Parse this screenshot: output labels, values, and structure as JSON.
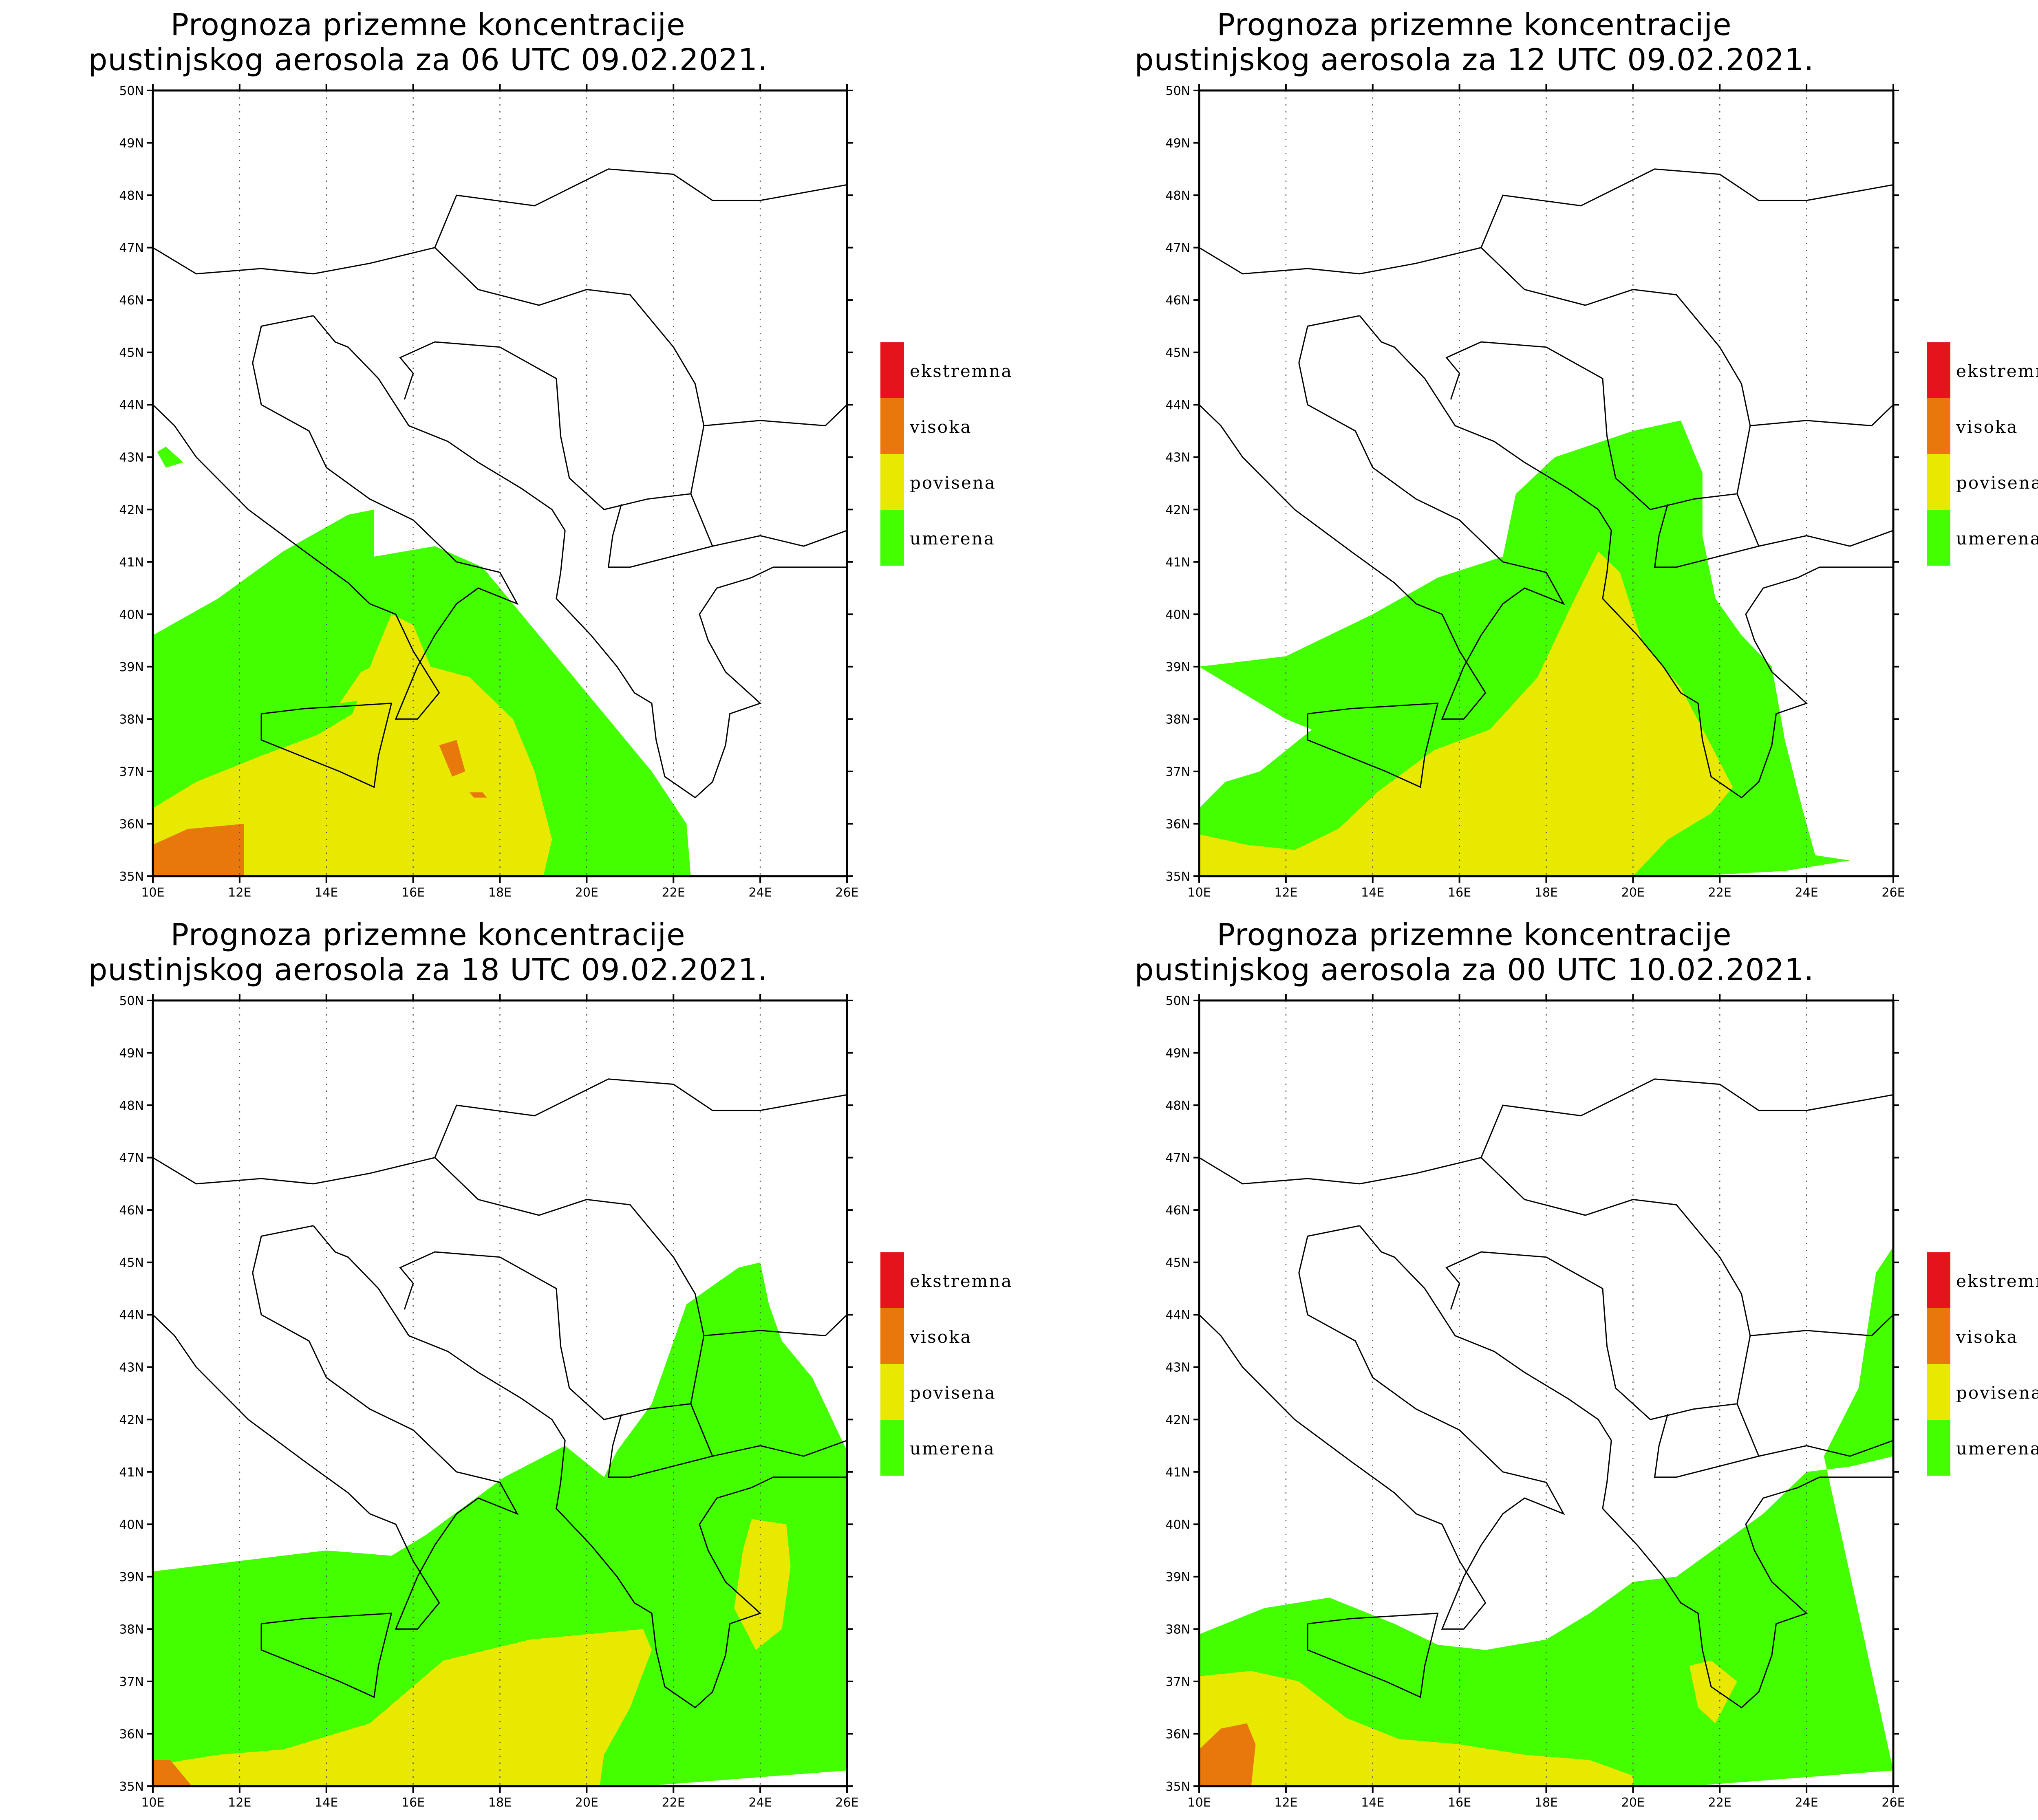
{
  "panels": [
    {
      "title_line1": "Prognoza prizemne koncentracije",
      "title_line2": "pustinjskog aerosola za 06 UTC 09.02.2021."
    },
    {
      "title_line1": "Prognoza prizemne koncentracije",
      "title_line2": "pustinjskog aerosola za 12 UTC 09.02.2021."
    },
    {
      "title_line1": "Prognoza prizemne koncentracije",
      "title_line2": "pustinjskog aerosola za 18 UTC 09.02.2021."
    },
    {
      "title_line1": "Prognoza prizemne koncentracije",
      "title_line2": "pustinjskog aerosola za 00 UTC 10.02.2021."
    }
  ],
  "legend": [
    {
      "label": "ekstremna",
      "color": "#e5141a"
    },
    {
      "label": "visoka",
      "color": "#e8780c"
    },
    {
      "label": "povisena",
      "color": "#e8e800"
    },
    {
      "label": "umerena",
      "color": "#44ff00"
    }
  ],
  "map": {
    "lat_labels": [
      "50N",
      "49N",
      "48N",
      "47N",
      "46N",
      "45N",
      "44N",
      "43N",
      "42N",
      "41N",
      "40N",
      "39N",
      "38N",
      "37N",
      "36N",
      "35N"
    ],
    "lon_labels": [
      "10E",
      "12E",
      "14E",
      "16E",
      "18E",
      "20E",
      "22E",
      "24E",
      "26E"
    ],
    "lat_range": [
      35,
      50
    ],
    "lon_range": [
      10,
      26
    ]
  }
}
